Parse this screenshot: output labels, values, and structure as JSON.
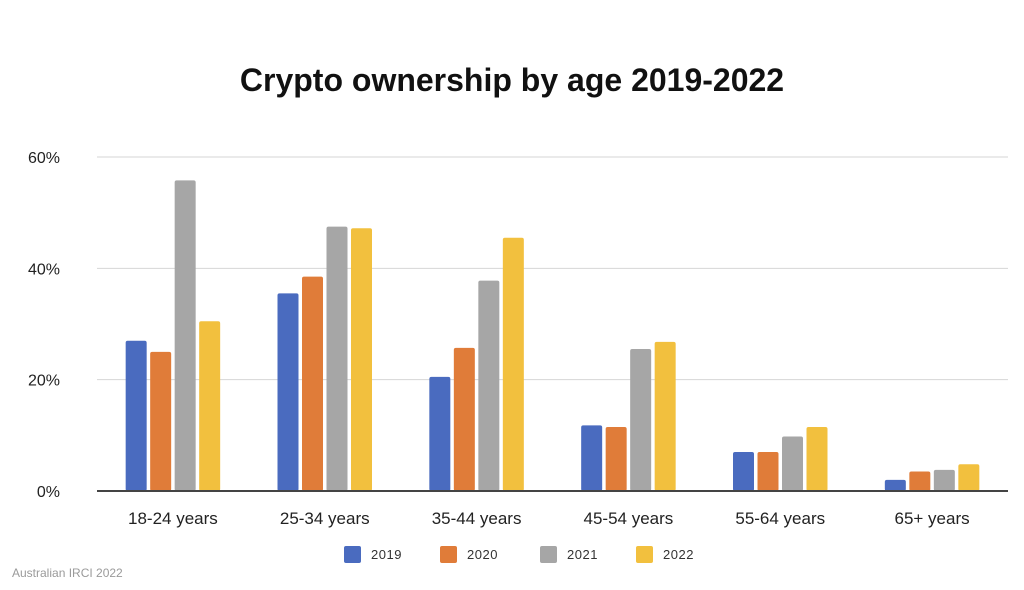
{
  "chart_data": {
    "type": "bar",
    "title": "Crypto ownership by age 2019-2022",
    "categories": [
      "18-24 years",
      "25-34 years",
      "35-44 years",
      "45-54 years",
      "55-64 years",
      "65+ years"
    ],
    "series": [
      {
        "name": "2019",
        "color": "#4a6bbf",
        "values": [
          27,
          35.5,
          20.5,
          11.8,
          7,
          2
        ]
      },
      {
        "name": "2020",
        "color": "#e07c39",
        "values": [
          25,
          38.5,
          25.7,
          11.5,
          7,
          3.5
        ]
      },
      {
        "name": "2021",
        "color": "#a6a6a6",
        "values": [
          55.8,
          47.5,
          37.8,
          25.5,
          9.8,
          3.8
        ]
      },
      {
        "name": "2022",
        "color": "#f2c03e",
        "values": [
          30.5,
          47.2,
          45.5,
          26.8,
          11.5,
          4.8
        ]
      }
    ],
    "ylim": [
      0,
      60
    ],
    "yticks": [
      0,
      20,
      40,
      60
    ],
    "ytick_labels": [
      "0%",
      "20%",
      "40%",
      "60%"
    ],
    "grid": true,
    "legend": "bottom"
  },
  "source": "Australian IRCI 2022"
}
